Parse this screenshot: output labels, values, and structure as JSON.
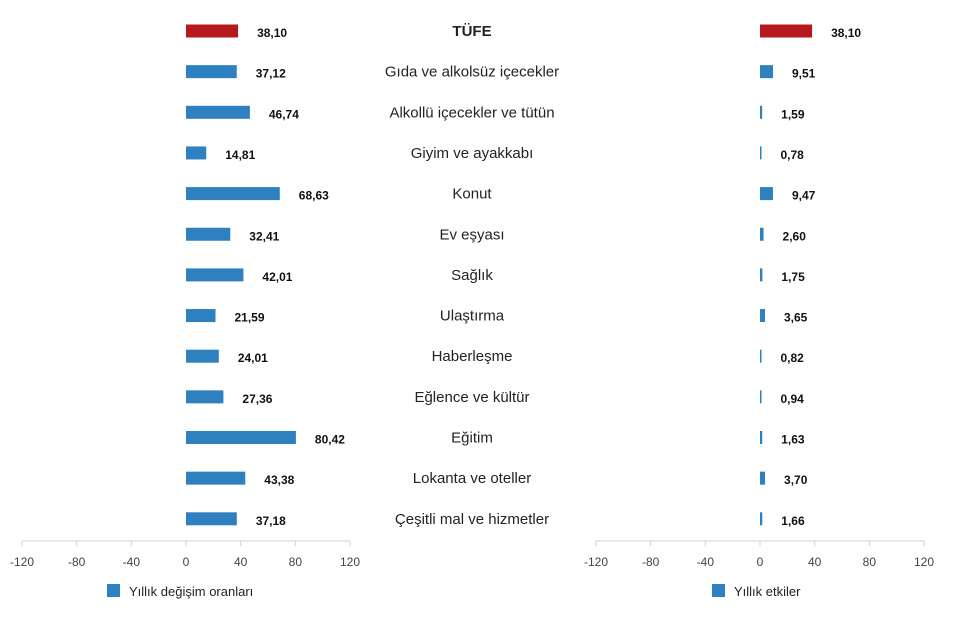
{
  "colors": {
    "highlight": "#b5191d",
    "bar": "#2e80be",
    "axis": "#d0d0d0"
  },
  "chart_data": [
    {
      "type": "bar",
      "orientation": "horizontal",
      "legend": "Yıllık değişim oranları",
      "legend_position": "bottom-left",
      "xlim": [
        -120,
        120
      ],
      "xticks": [
        "-120",
        "-80",
        "-40",
        "0",
        "40",
        "80",
        "120"
      ],
      "categories": [
        "TÜFE",
        "Gıda ve alkolsüz içecekler",
        "Alkollü içecekler ve tütün",
        "Giyim ve ayakkabı",
        "Konut",
        "Ev eşyası",
        "Sağlık",
        "Ulaştırma",
        "Haberleşme",
        "Eğlence ve kültür",
        "Eğitim",
        "Lokanta ve oteller",
        "Çeşitli mal ve hizmetler"
      ],
      "values": [
        38.1,
        37.12,
        46.74,
        14.81,
        68.63,
        32.41,
        42.01,
        21.59,
        24.01,
        27.36,
        80.42,
        43.38,
        37.18
      ],
      "value_labels": [
        "38,10",
        "37,12",
        "46,74",
        "14,81",
        "68,63",
        "32,41",
        "42,01",
        "21,59",
        "24,01",
        "27,36",
        "80,42",
        "43,38",
        "37,18"
      ]
    },
    {
      "type": "bar",
      "orientation": "horizontal",
      "legend": "Yıllık etkiler",
      "legend_position": "bottom-center",
      "xlim": [
        -120,
        120
      ],
      "xticks": [
        "-120",
        "-80",
        "-40",
        "0",
        "40",
        "80",
        "120"
      ],
      "categories": [
        "TÜFE",
        "Gıda ve alkolsüz içecekler",
        "Alkollü içecekler ve tütün",
        "Giyim ve ayakkabı",
        "Konut",
        "Ev eşyası",
        "Sağlık",
        "Ulaştırma",
        "Haberleşme",
        "Eğlence ve kültür",
        "Eğitim",
        "Lokanta ve oteller",
        "Çeşitli mal ve hizmetler"
      ],
      "values": [
        38.1,
        9.51,
        1.59,
        0.78,
        9.47,
        2.6,
        1.75,
        3.65,
        0.82,
        0.94,
        1.63,
        3.7,
        1.66
      ],
      "value_labels": [
        "38,10",
        "9,51",
        "1,59",
        "0,78",
        "9,47",
        "2,60",
        "1,75",
        "3,65",
        "0,82",
        "0,94",
        "1,63",
        "3,70",
        "1,66"
      ]
    }
  ]
}
